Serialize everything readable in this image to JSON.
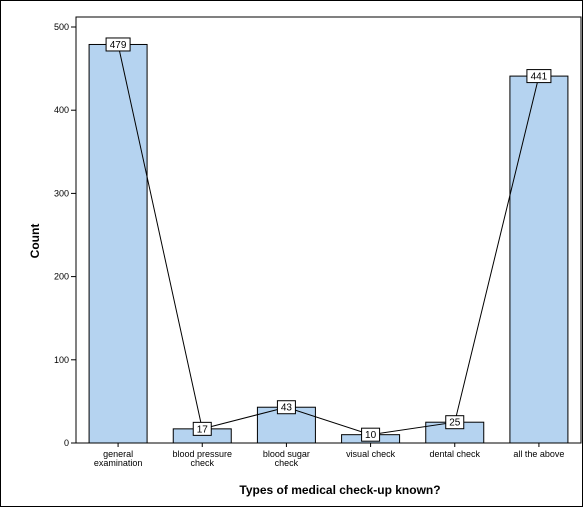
{
  "chart_data": {
    "type": "bar",
    "title": "",
    "xlabel": "Types of medical check-up known?",
    "ylabel": "Count",
    "categories": [
      [
        "general",
        "examination"
      ],
      [
        "blood pressure",
        "check"
      ],
      [
        "blood sugar",
        "check"
      ],
      [
        "visual check"
      ],
      [
        "dental check"
      ],
      [
        "all the above"
      ]
    ],
    "values": [
      479,
      17,
      43,
      10,
      25,
      441
    ],
    "ylim": [
      0,
      500
    ],
    "yticks": [
      0,
      100,
      200,
      300,
      400,
      500
    ],
    "overlay_line": true,
    "data_labels": true,
    "grid": false,
    "legend": "none",
    "bar_color": "#B5D3F0",
    "bar_edge_color": "#000000"
  }
}
